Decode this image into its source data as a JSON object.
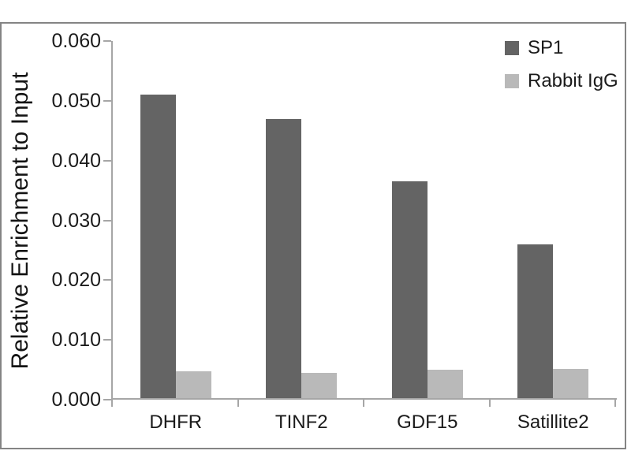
{
  "figure": {
    "background": "#ffffff",
    "frame_border_color": "#848484"
  },
  "chart_data": {
    "type": "bar",
    "title": "",
    "xlabel": "",
    "ylabel": "Relative Enrichment to Input",
    "categories": [
      "DHFR",
      "TINF2",
      "GDF15",
      "Satillite2"
    ],
    "series": [
      {
        "name": "SP1",
        "color": "#646464",
        "values": [
          0.051,
          0.047,
          0.0365,
          0.026
        ]
      },
      {
        "name": "Rabbit IgG",
        "color": "#b9b9b9",
        "values": [
          0.0048,
          0.0045,
          0.005,
          0.0052
        ]
      }
    ],
    "ylim": [
      0,
      0.06
    ],
    "ytick_step": 0.01,
    "ytick_labels": [
      "0.000",
      "0.010",
      "0.020",
      "0.030",
      "0.040",
      "0.050",
      "0.060"
    ],
    "grid": false,
    "legend_position": "top-right",
    "axis_color": "#a6a6a6",
    "text_color": "#1b1b1b"
  }
}
